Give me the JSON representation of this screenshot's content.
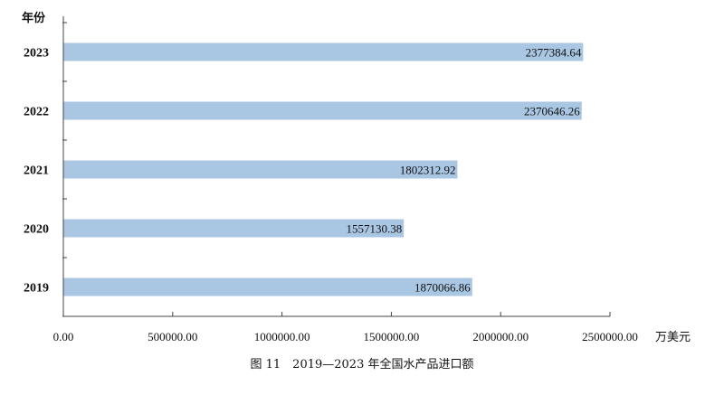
{
  "chart_data": {
    "type": "bar",
    "orientation": "horizontal",
    "categories": [
      "2023",
      "2022",
      "2021",
      "2020",
      "2019"
    ],
    "values": [
      2377384.64,
      2370646.26,
      1802312.92,
      1557130.38,
      1870066.86
    ],
    "data_labels": [
      "2377384.64",
      "2370646.26",
      "1802312.92",
      "1557130.38",
      "1870066.86"
    ],
    "ylabel": "年份",
    "xlabel": "万美元",
    "xlim": [
      0,
      2500000
    ],
    "xticks": [
      0,
      500000,
      1000000,
      1500000,
      2000000,
      2500000
    ],
    "xtick_labels": [
      "0.00",
      "500000.00",
      "1000000.00",
      "1500000.00",
      "2000000.00",
      "2500000.00"
    ],
    "bar_color": "#a9c6e3",
    "grid": false,
    "caption": "图 11　2019—2023 年全国水产品进口额"
  }
}
